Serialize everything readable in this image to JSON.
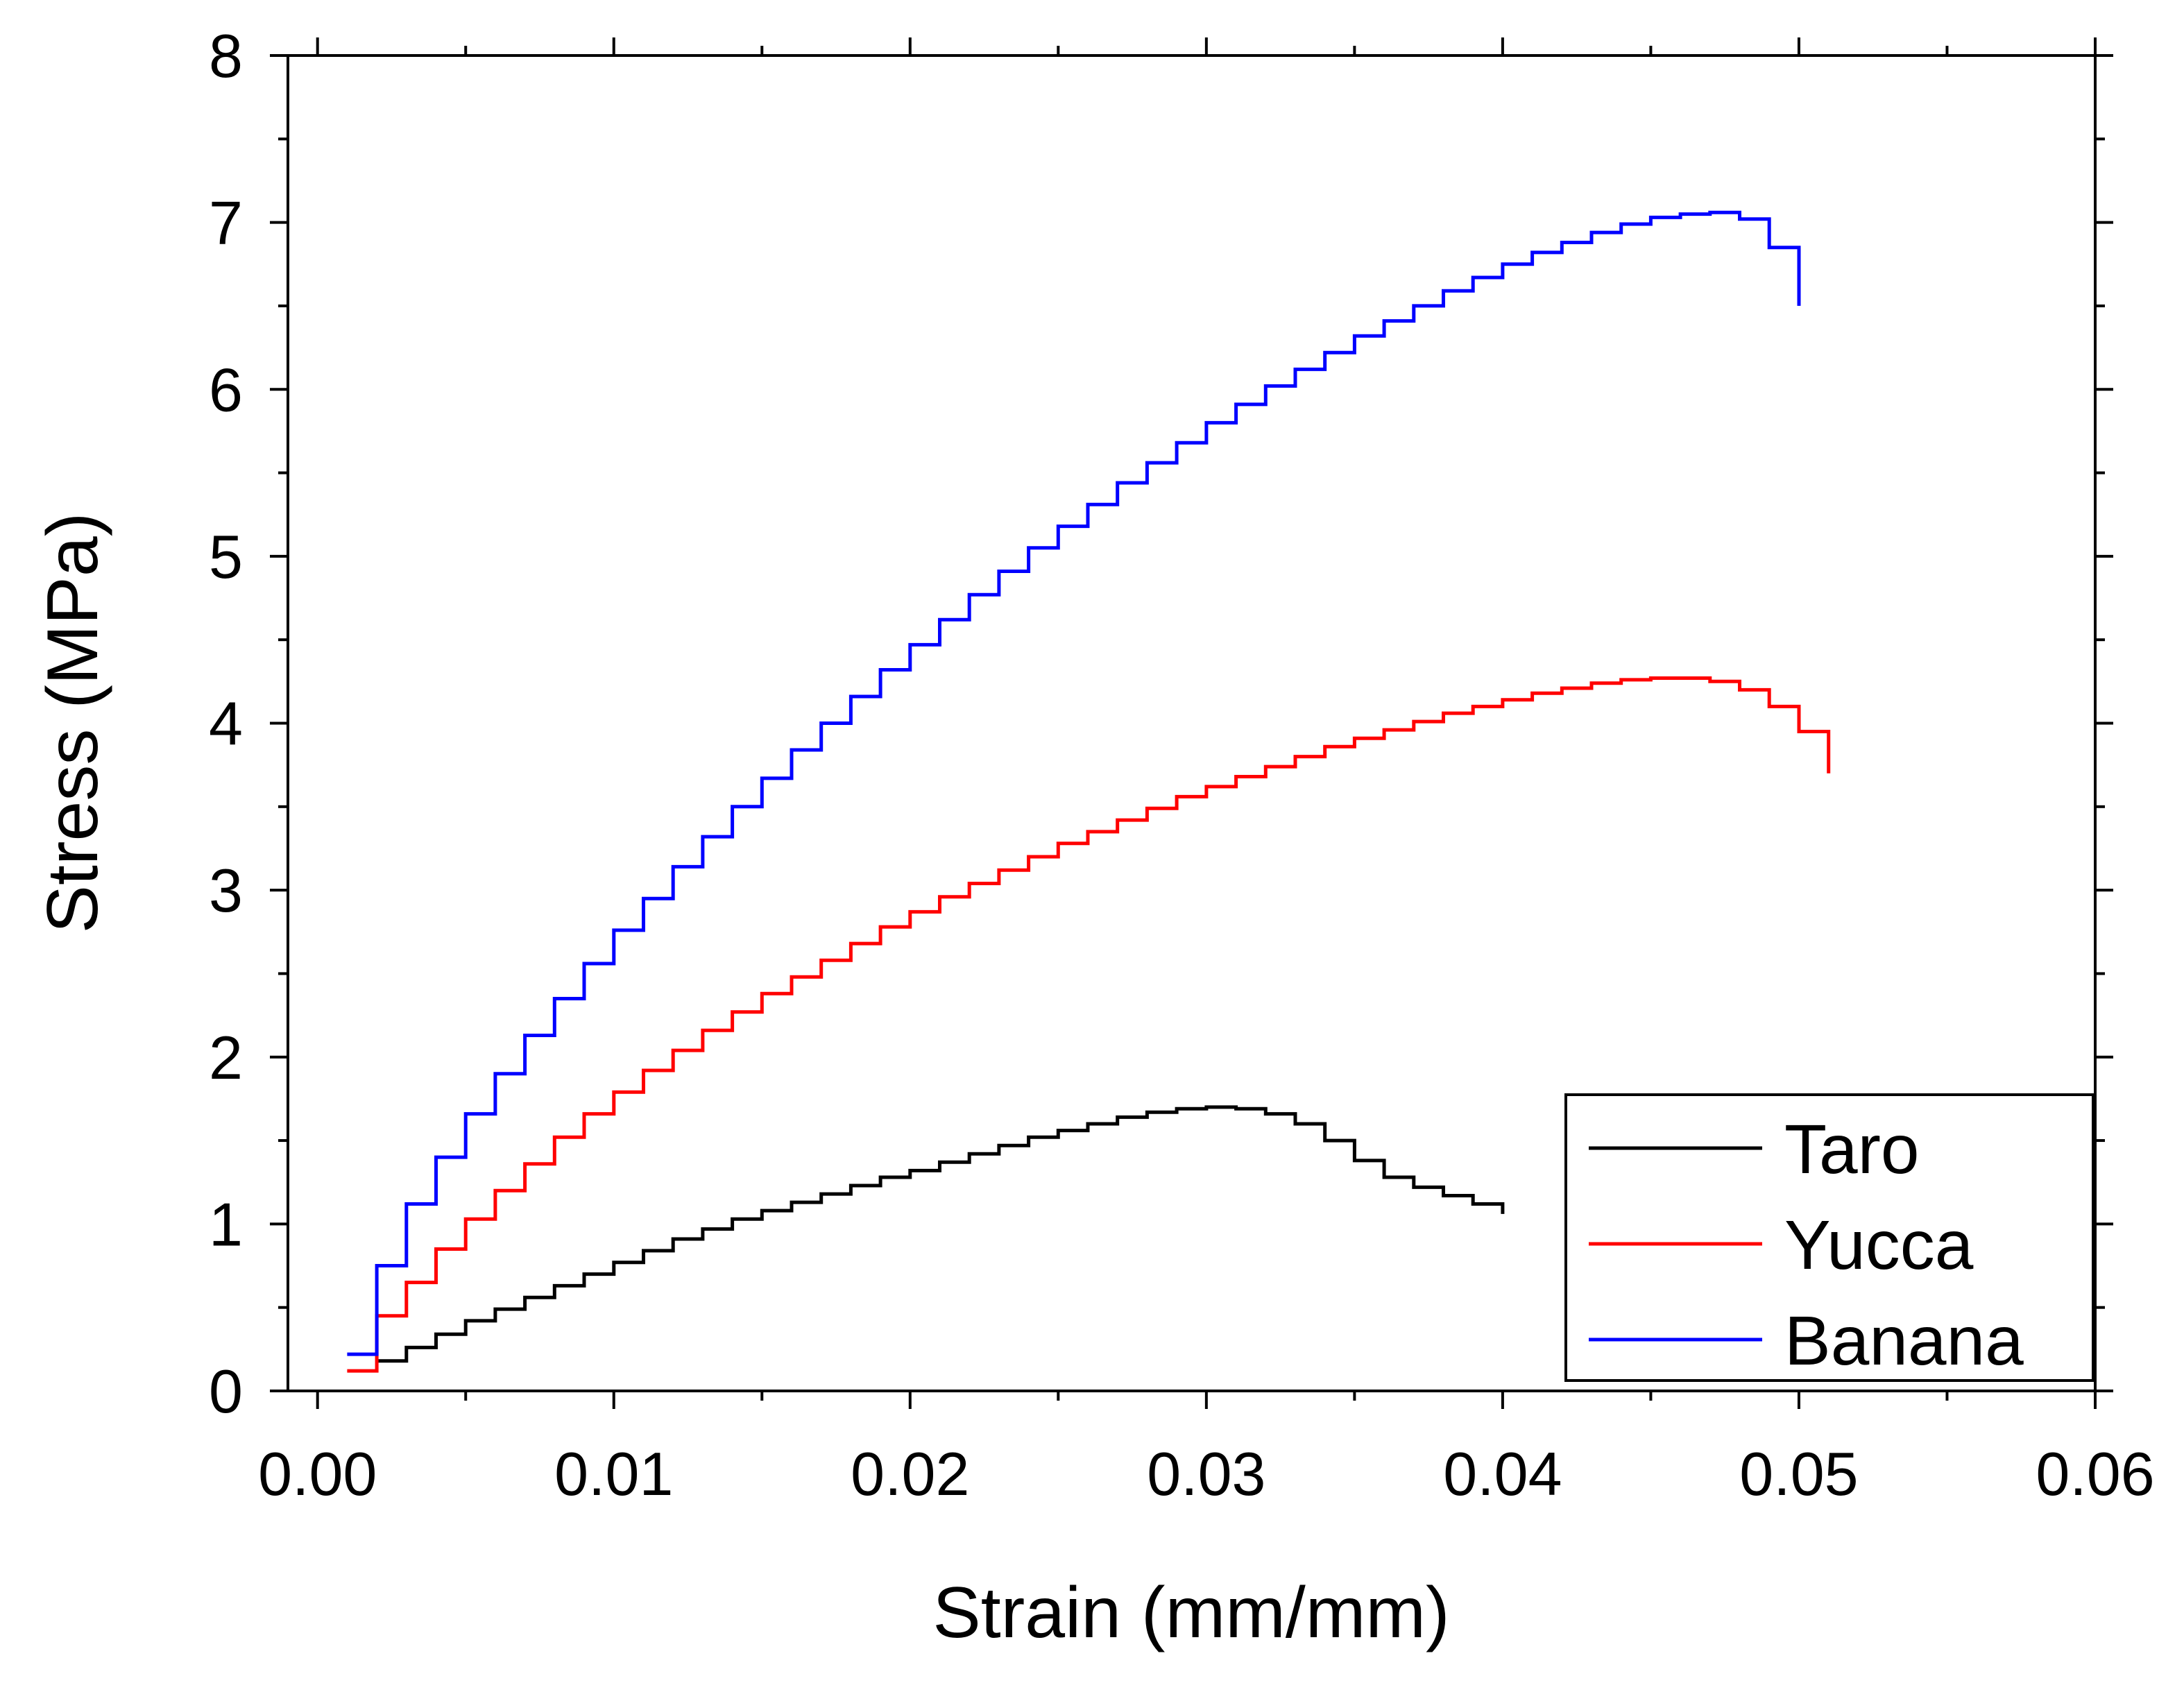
{
  "chart_data": {
    "type": "line",
    "title": "",
    "xlabel": "Strain (mm/mm)",
    "ylabel": "Stress (MPa)",
    "xlim": [
      -0.001,
      0.06
    ],
    "ylim": [
      0,
      8
    ],
    "x_ticks": [
      0.0,
      0.01,
      0.02,
      0.03,
      0.04,
      0.05,
      0.06
    ],
    "x_tick_labels": [
      "0.00",
      "0.01",
      "0.02",
      "0.03",
      "0.04",
      "0.05",
      "0.06"
    ],
    "y_ticks": [
      0,
      1,
      2,
      3,
      4,
      5,
      6,
      7,
      8
    ],
    "y_tick_labels": [
      "0",
      "1",
      "2",
      "3",
      "4",
      "5",
      "6",
      "7",
      "8"
    ],
    "grid": false,
    "legend_position": "bottom-right",
    "line_style": "step",
    "series": [
      {
        "name": "Taro",
        "color": "#000000",
        "x": [
          0.002,
          0.003,
          0.004,
          0.005,
          0.006,
          0.007,
          0.008,
          0.009,
          0.01,
          0.011,
          0.012,
          0.013,
          0.014,
          0.015,
          0.016,
          0.017,
          0.018,
          0.019,
          0.02,
          0.021,
          0.022,
          0.023,
          0.024,
          0.025,
          0.026,
          0.027,
          0.028,
          0.029,
          0.03,
          0.031,
          0.032,
          0.033,
          0.034,
          0.035,
          0.036,
          0.037,
          0.038,
          0.039,
          0.04
        ],
        "y": [
          0.18,
          0.26,
          0.34,
          0.42,
          0.49,
          0.56,
          0.63,
          0.7,
          0.77,
          0.84,
          0.91,
          0.97,
          1.03,
          1.08,
          1.13,
          1.18,
          1.23,
          1.28,
          1.32,
          1.37,
          1.42,
          1.47,
          1.52,
          1.56,
          1.6,
          1.64,
          1.67,
          1.69,
          1.7,
          1.69,
          1.66,
          1.6,
          1.5,
          1.38,
          1.28,
          1.22,
          1.17,
          1.12,
          1.06
        ]
      },
      {
        "name": "Yucca",
        "color": "#ff0000",
        "x": [
          0.001,
          0.002,
          0.003,
          0.004,
          0.005,
          0.006,
          0.007,
          0.008,
          0.009,
          0.01,
          0.011,
          0.012,
          0.013,
          0.014,
          0.015,
          0.016,
          0.017,
          0.018,
          0.019,
          0.02,
          0.021,
          0.022,
          0.023,
          0.024,
          0.025,
          0.026,
          0.027,
          0.028,
          0.029,
          0.03,
          0.031,
          0.032,
          0.033,
          0.034,
          0.035,
          0.036,
          0.037,
          0.038,
          0.039,
          0.04,
          0.041,
          0.042,
          0.043,
          0.044,
          0.045,
          0.046,
          0.047,
          0.048,
          0.049,
          0.05,
          0.051
        ],
        "y": [
          0.12,
          0.45,
          0.65,
          0.85,
          1.03,
          1.2,
          1.36,
          1.52,
          1.66,
          1.79,
          1.92,
          2.04,
          2.16,
          2.27,
          2.38,
          2.48,
          2.58,
          2.68,
          2.78,
          2.87,
          2.96,
          3.04,
          3.12,
          3.2,
          3.28,
          3.35,
          3.42,
          3.49,
          3.56,
          3.62,
          3.68,
          3.74,
          3.8,
          3.86,
          3.91,
          3.96,
          4.01,
          4.06,
          4.1,
          4.14,
          4.18,
          4.21,
          4.24,
          4.26,
          4.27,
          4.27,
          4.25,
          4.2,
          4.1,
          3.95,
          3.7
        ]
      },
      {
        "name": "Banana",
        "color": "#0000ff",
        "x": [
          0.001,
          0.002,
          0.003,
          0.004,
          0.005,
          0.006,
          0.007,
          0.008,
          0.009,
          0.01,
          0.011,
          0.012,
          0.013,
          0.014,
          0.015,
          0.016,
          0.017,
          0.018,
          0.019,
          0.02,
          0.021,
          0.022,
          0.023,
          0.024,
          0.025,
          0.026,
          0.027,
          0.028,
          0.029,
          0.03,
          0.031,
          0.032,
          0.033,
          0.034,
          0.035,
          0.036,
          0.037,
          0.038,
          0.039,
          0.04,
          0.041,
          0.042,
          0.043,
          0.044,
          0.045,
          0.046,
          0.047,
          0.048,
          0.049,
          0.05
        ],
        "y": [
          0.22,
          0.75,
          1.12,
          1.4,
          1.66,
          1.9,
          2.13,
          2.35,
          2.56,
          2.76,
          2.95,
          3.14,
          3.32,
          3.5,
          3.67,
          3.84,
          4.0,
          4.16,
          4.32,
          4.47,
          4.62,
          4.77,
          4.91,
          5.05,
          5.18,
          5.31,
          5.44,
          5.56,
          5.68,
          5.8,
          5.91,
          6.02,
          6.12,
          6.22,
          6.32,
          6.41,
          6.5,
          6.59,
          6.67,
          6.75,
          6.82,
          6.88,
          6.94,
          6.99,
          7.03,
          7.05,
          7.06,
          7.02,
          6.85,
          6.5
        ]
      }
    ]
  }
}
